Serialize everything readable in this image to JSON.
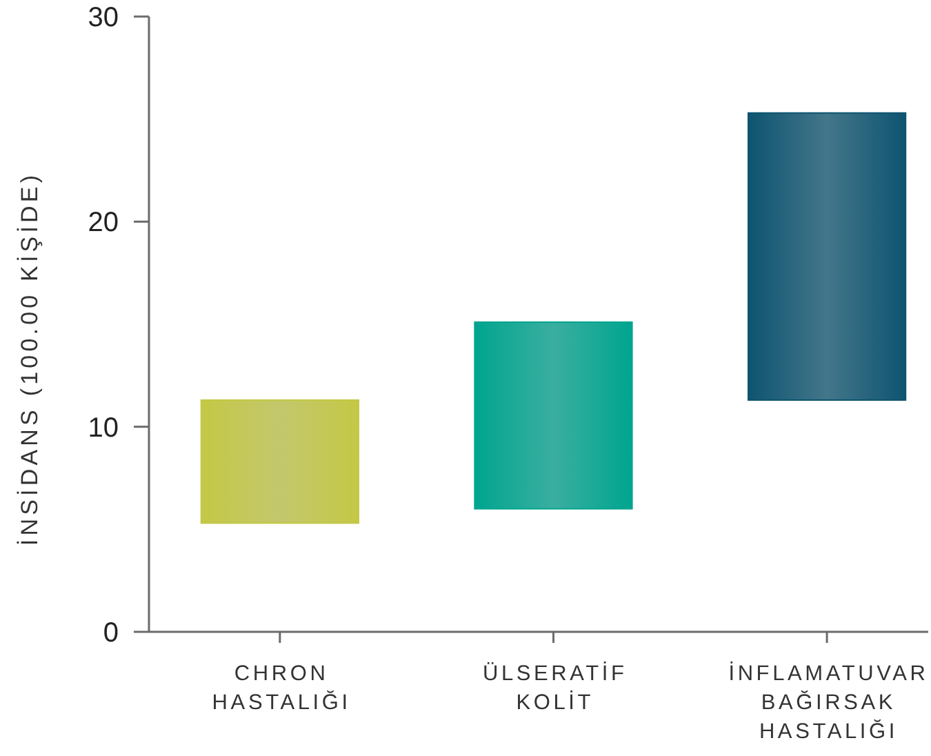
{
  "chart_data": {
    "type": "bar",
    "ylabel": "İNSİDANS (100.00 KİŞİDE)",
    "categories": [
      "CHRON HASTALIĞI",
      "ÜLSERATİF KOLİT",
      "İNFLAMATUVAR BAĞIRSAK HASTALIĞI"
    ],
    "values": [
      6.0,
      9.1,
      14.0
    ],
    "base": [
      5.3,
      6.0,
      11.3
    ],
    "colors": [
      "#c4c845",
      "#00a58f",
      "#0e5470"
    ],
    "ylim": [
      0,
      30
    ],
    "yticks": [
      0,
      10,
      20,
      30
    ]
  }
}
